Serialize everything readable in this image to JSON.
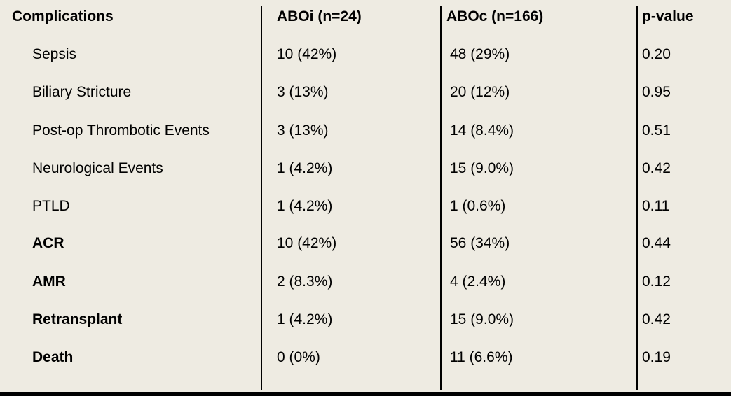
{
  "table": {
    "headers": {
      "complications": "Complications",
      "aboi": "ABOi (n=24)",
      "aboc": "ABOc (n=166)",
      "pvalue": "p-value"
    },
    "rows": [
      {
        "complication": "Sepsis",
        "aboi": "10 (42%)",
        "aboc": "48 (29%)",
        "pvalue": "0.20",
        "bold": false
      },
      {
        "complication": "Biliary Stricture",
        "aboi": "3 (13%)",
        "aboc": "20 (12%)",
        "pvalue": "0.95",
        "bold": false
      },
      {
        "complication": "Post-op Thrombotic Events",
        "aboi": "3 (13%)",
        "aboc": "14 (8.4%)",
        "pvalue": "0.51",
        "bold": false
      },
      {
        "complication": "Neurological Events",
        "aboi": "1 (4.2%)",
        "aboc": "15 (9.0%)",
        "pvalue": "0.42",
        "bold": false
      },
      {
        "complication": "PTLD",
        "aboi": "1 (4.2%)",
        "aboc": "1 (0.6%)",
        "pvalue": "0.11",
        "bold": false
      },
      {
        "complication": "ACR",
        "aboi": "10 (42%)",
        "aboc": "56 (34%)",
        "pvalue": "0.44",
        "bold": true
      },
      {
        "complication": "AMR",
        "aboi": "2 (8.3%)",
        "aboc": "4 (2.4%)",
        "pvalue": "0.12",
        "bold": true
      },
      {
        "complication": "Retransplant",
        "aboi": "1 (4.2%)",
        "aboc": "15 (9.0%)",
        "pvalue": "0.42",
        "bold": true
      },
      {
        "complication": "Death",
        "aboi": "0 (0%)",
        "aboc": "11 (6.6%)",
        "pvalue": "0.19",
        "bold": true
      }
    ]
  }
}
